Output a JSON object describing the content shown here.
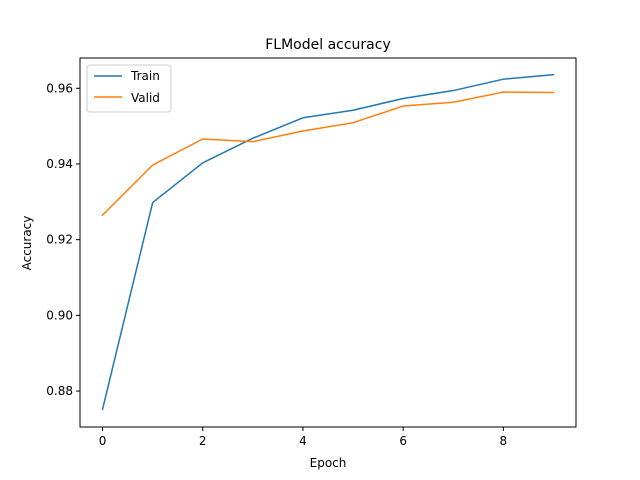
{
  "chart_data": {
    "type": "line",
    "title": "FLModel accuracy",
    "xlabel": "Epoch",
    "ylabel": "Accuracy",
    "x": [
      0,
      1,
      2,
      3,
      4,
      5,
      6,
      7,
      8,
      9
    ],
    "xlim": [
      -0.45,
      9.45
    ],
    "ylim": [
      0.8705,
      0.968
    ],
    "xticks": [
      0,
      2,
      4,
      6,
      8
    ],
    "yticks": [
      0.88,
      0.9,
      0.92,
      0.94,
      0.96
    ],
    "ytick_labels": [
      "0.88",
      "0.90",
      "0.92",
      "0.94",
      "0.96"
    ],
    "grid": false,
    "legend_position": "upper-left",
    "series": [
      {
        "name": "Train",
        "color": "#1f77b4",
        "values": [
          0.8752,
          0.9298,
          0.9403,
          0.9468,
          0.9522,
          0.9542,
          0.9573,
          0.9594,
          0.9624,
          0.9636
        ]
      },
      {
        "name": "Valid",
        "color": "#ff7f0e",
        "values": [
          0.9265,
          0.9397,
          0.9466,
          0.9459,
          0.9487,
          0.9509,
          0.9553,
          0.9563,
          0.959,
          0.9589
        ]
      }
    ]
  }
}
